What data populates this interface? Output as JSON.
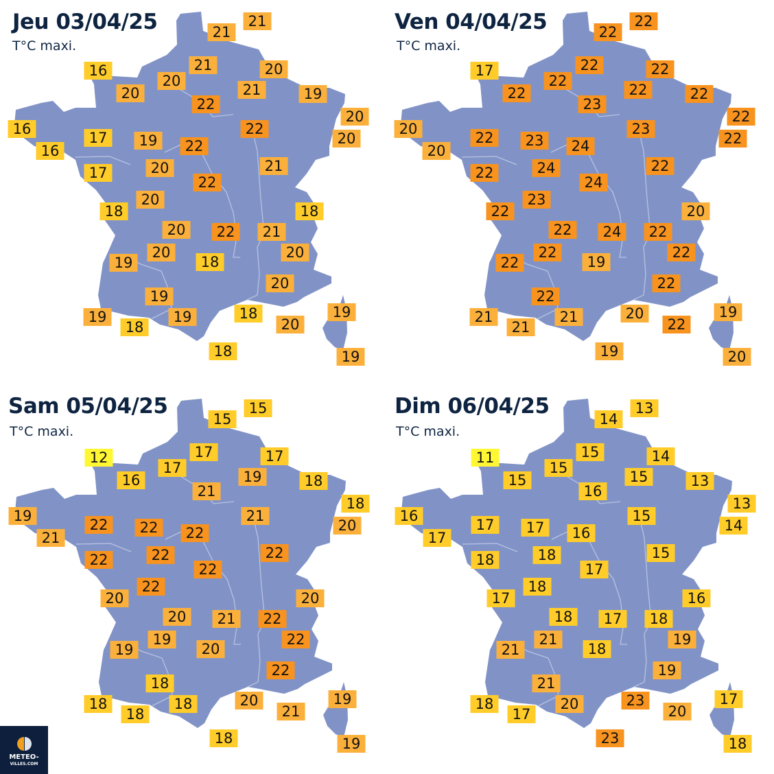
{
  "legend": {
    "colors": {
      "11-12": "#fff733",
      "13-18": "#ffcc29",
      "19-21": "#fbb03b",
      "22-24": "#f7931e"
    },
    "map_color": "#8193c6"
  },
  "panels": [
    {
      "title": "Jeu 03/04/25",
      "subtitle": "T°C maxi.",
      "temps": [
        "21",
        "21",
        "16",
        "21",
        "20",
        "20",
        "20",
        "21",
        "19",
        "22",
        "20",
        "16",
        "22",
        "20",
        "17",
        "16",
        "19",
        "22",
        "20",
        "21",
        "17",
        "22",
        "20",
        "18",
        "18",
        "20",
        "22",
        "21",
        "20",
        "20",
        "19",
        "18",
        "20",
        "19",
        "18",
        "19",
        "19",
        "19",
        "18",
        "20",
        "18",
        "19"
      ]
    },
    {
      "title": "Ven 04/04/25",
      "subtitle": "T°C maxi.",
      "temps": [
        "22",
        "22",
        "17",
        "22",
        "22",
        "22",
        "22",
        "22",
        "22",
        "23",
        "22",
        "20",
        "23",
        "22",
        "22",
        "20",
        "23",
        "24",
        "24",
        "22",
        "22",
        "24",
        "23",
        "22",
        "20",
        "22",
        "24",
        "22",
        "22",
        "22",
        "22",
        "19",
        "22",
        "22",
        "20",
        "19",
        "21",
        "21",
        "21",
        "22",
        "19",
        "20"
      ]
    },
    {
      "title": "Sam 05/04/25",
      "subtitle": "T°C maxi.",
      "temps": [
        "15",
        "15",
        "12",
        "17",
        "17",
        "17",
        "16",
        "19",
        "18",
        "21",
        "18",
        "19",
        "21",
        "20",
        "22",
        "21",
        "22",
        "22",
        "22",
        "22",
        "22",
        "22",
        "22",
        "20",
        "20",
        "20",
        "21",
        "22",
        "19",
        "22",
        "19",
        "20",
        "22",
        "18",
        "20",
        "19",
        "18",
        "18",
        "18",
        "21",
        "18",
        "19"
      ]
    },
    {
      "title": "Dim 06/04/25",
      "subtitle": "T°C maxi.",
      "temps": [
        "13",
        "14",
        "11",
        "15",
        "14",
        "15",
        "15",
        "15",
        "13",
        "16",
        "13",
        "16",
        "15",
        "14",
        "17",
        "17",
        "17",
        "16",
        "18",
        "15",
        "18",
        "17",
        "18",
        "17",
        "16",
        "18",
        "17",
        "18",
        "21",
        "19",
        "21",
        "18",
        "19",
        "21",
        "23",
        "17",
        "18",
        "20",
        "17",
        "20",
        "23",
        "18"
      ]
    }
  ],
  "logo": {
    "line1": "METEO-",
    "line2": "VILLES.COM"
  }
}
